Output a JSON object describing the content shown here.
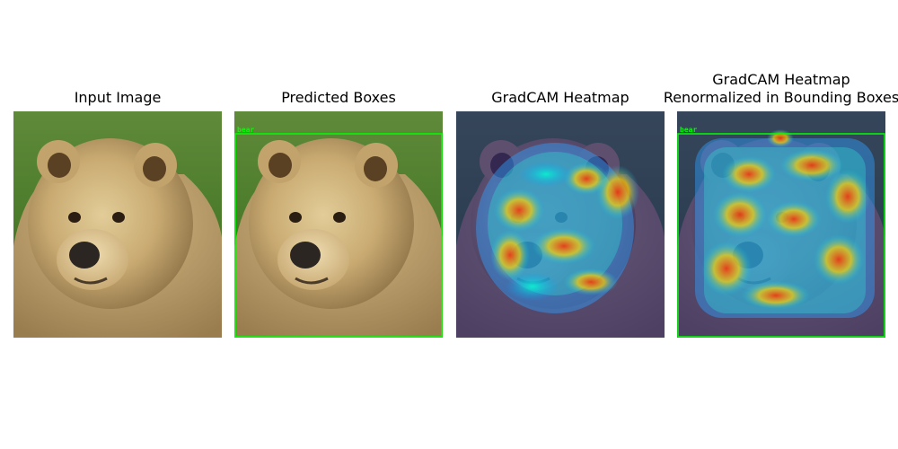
{
  "panels": [
    {
      "title": "Input Image"
    },
    {
      "title": "Predicted Boxes",
      "box_label": "bear"
    },
    {
      "title": "GradCAM Heatmap"
    },
    {
      "title_line1": "GradCAM Heatmap",
      "title_line2": "Renormalized in Bounding Boxes",
      "box_label": "bear"
    }
  ],
  "colors": {
    "grass": "#4f7f2e",
    "fur_light": "#d8c08a",
    "fur_mid": "#b89a63",
    "fur_dark": "#6b5232",
    "nose": "#2b2622",
    "box": "#00ff00"
  }
}
